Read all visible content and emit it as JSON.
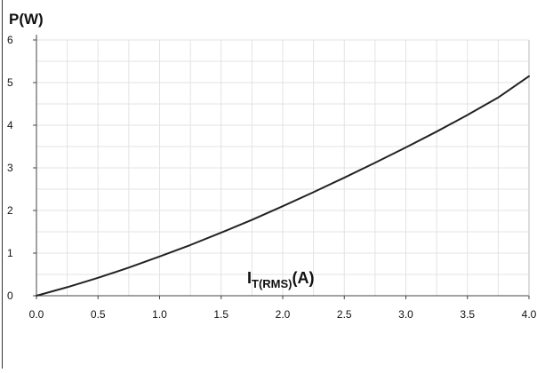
{
  "chart_data": {
    "type": "line",
    "y_axis_title": "P(W)",
    "x_axis_title": {
      "main": "I",
      "subscript": "T(RMS)",
      "unit": "(A)"
    },
    "x": [
      0.0,
      0.25,
      0.5,
      0.75,
      1.0,
      1.25,
      1.5,
      1.75,
      2.0,
      2.25,
      2.5,
      2.75,
      3.0,
      3.25,
      3.5,
      3.75,
      4.0
    ],
    "series": [
      {
        "values": [
          0.0,
          0.2,
          0.42,
          0.66,
          0.92,
          1.19,
          1.48,
          1.78,
          2.1,
          2.43,
          2.77,
          3.12,
          3.48,
          3.85,
          4.24,
          4.65,
          5.15
        ]
      }
    ],
    "xlim": [
      0.0,
      4.0
    ],
    "ylim": [
      0,
      6
    ],
    "x_ticks": [
      0.0,
      0.5,
      1.0,
      1.5,
      2.0,
      2.5,
      3.0,
      3.5,
      4.0
    ],
    "x_tick_labels": [
      "0.0",
      "0.5",
      "1.0",
      "1.5",
      "2.0",
      "2.5",
      "3.0",
      "3.5",
      "4.0"
    ],
    "y_ticks": [
      0,
      1,
      2,
      3,
      4,
      5,
      6
    ],
    "y_tick_labels": [
      "0",
      "1",
      "2",
      "3",
      "4",
      "5",
      "6"
    ],
    "grid": true,
    "minor_grid": true,
    "line_color": "#222222",
    "grid_color": "#e3e3e3",
    "axis_color": "#444444"
  }
}
